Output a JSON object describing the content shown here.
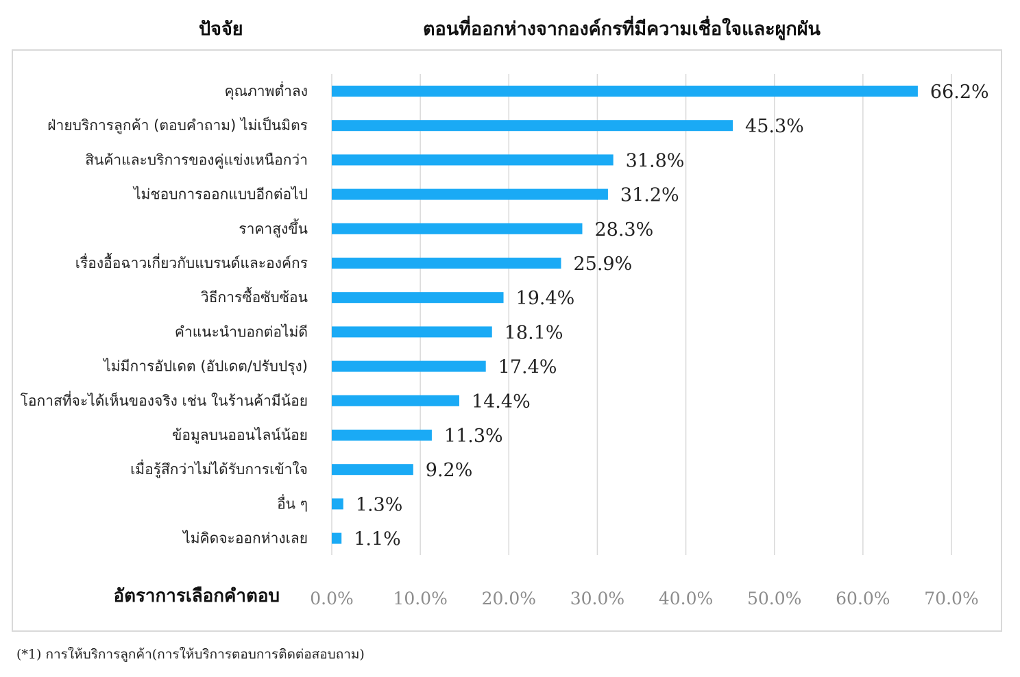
{
  "headers": {
    "factor": "ปัจจัย",
    "title": "ตอนที่ออกห่างจากองค์กรที่มีความเชื่อใจและผูกผัน"
  },
  "x_axis_title": "อัตราการเลือกคำตอบ",
  "footnote": "(*1) การให้บริการลูกค้า(การให้บริการตอบการติดต่อสอบถาม)",
  "colors": {
    "bar": "#1aaaf5",
    "grid": "#d9d9d9",
    "tick": "#8c8c8c"
  },
  "chart_data": {
    "type": "bar",
    "orientation": "horizontal",
    "categories": [
      "คุณภาพต่ำลง",
      "ฝ่ายบริการลูกค้า (ตอบคำถาม) ไม่เป็นมิตร",
      "สินค้าและบริการของคู่แข่งเหนือกว่า",
      "ไม่ชอบการออกแบบอีกต่อไป",
      "ราคาสูงขึ้น",
      "เรื่องอื้อฉาวเกี่ยวกับแบรนด์และองค์กร",
      "วิธีการซื้อซับซ้อน",
      "คำแนะนำบอกต่อไม่ดี",
      "ไม่มีการอัปเดต (อัปเดต/ปรับปรุง)",
      "โอกาสที่จะได้เห็นของจริง เช่น ในร้านค้ามีน้อย",
      "ข้อมูลบนออนไลน์น้อย",
      "เมื่อรู้สึกว่าไม่ได้รับการเข้าใจ",
      "อื่น ๆ",
      "ไม่คิดจะออกห่างเลย"
    ],
    "values": [
      66.2,
      45.3,
      31.8,
      31.2,
      28.3,
      25.9,
      19.4,
      18.1,
      17.4,
      14.4,
      11.3,
      9.2,
      1.3,
      1.1
    ],
    "data_labels": [
      "66.2%",
      "45.3%",
      "31.8%",
      "31.2%",
      "28.3%",
      "25.9%",
      "19.4%",
      "18.1%",
      "17.4%",
      "14.4%",
      "11.3%",
      "9.2%",
      "1.3%",
      "1.1%"
    ],
    "xlim": [
      0,
      70
    ],
    "x_ticks": [
      "0.0%",
      "10.0%",
      "20.0%",
      "30.0%",
      "40.0%",
      "50.0%",
      "60.0%",
      "70.0%"
    ],
    "grid": true,
    "legend": "none"
  }
}
